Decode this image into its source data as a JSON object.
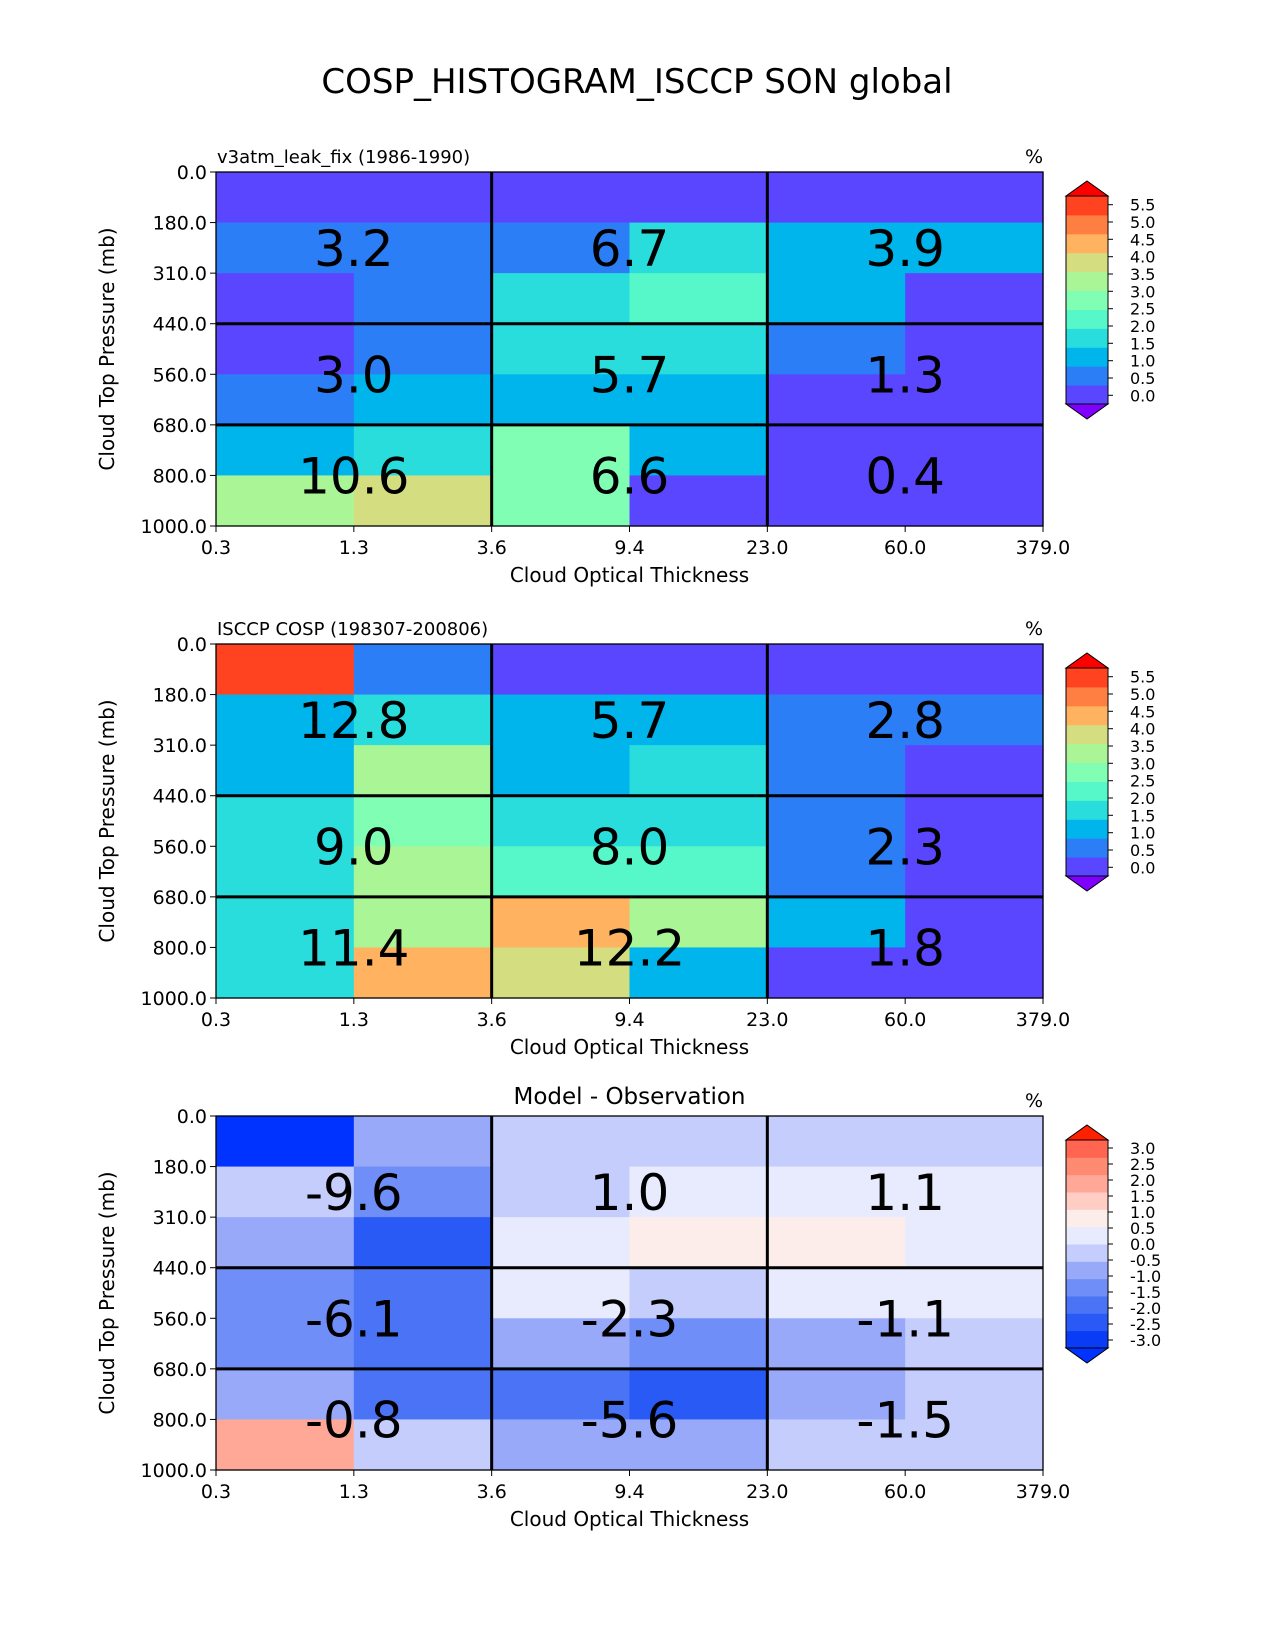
{
  "figure": {
    "title": "COSP_HISTOGRAM_ISCCP SON global"
  },
  "chart_data": [
    {
      "type": "heatmap",
      "title_left": "v3atm_leak_fix (1986-1990)",
      "title_center": "",
      "units": "%",
      "xlabel": "Cloud Optical Thickness",
      "ylabel": "Cloud Top Pressure (mb)",
      "x_ticks": [
        "0.3",
        "1.3",
        "3.6",
        "9.4",
        "23.0",
        "60.0",
        "379.0"
      ],
      "y_ticks": [
        "0.0",
        "180.0",
        "310.0",
        "440.0",
        "560.0",
        "680.0",
        "800.0",
        "1000.0"
      ],
      "cells": [
        [
          0.2,
          0.2,
          0.2,
          0.2,
          0.2,
          0.2
        ],
        [
          0.7,
          0.7,
          0.7,
          1.8,
          1.2,
          1.2
        ],
        [
          0.2,
          0.7,
          1.8,
          2.3,
          1.2,
          0.2
        ],
        [
          0.2,
          0.7,
          1.8,
          1.8,
          0.7,
          0.2
        ],
        [
          0.7,
          1.2,
          1.2,
          1.2,
          0.2,
          0.2
        ],
        [
          1.2,
          1.8,
          2.8,
          1.2,
          0.2,
          0.2
        ],
        [
          3.3,
          3.8,
          2.8,
          0.2,
          0.2,
          0.2
        ]
      ],
      "block_labels": [
        [
          "3.2",
          "6.7",
          "3.9"
        ],
        [
          "3.0",
          "5.7",
          "1.3"
        ],
        [
          "10.6",
          "6.6",
          "0.4"
        ]
      ],
      "colorbar": {
        "palette": "rainbow",
        "tick_labels": [
          "5.5",
          "5.0",
          "4.5",
          "4.0",
          "3.5",
          "3.0",
          "2.5",
          "2.0",
          "1.5",
          "1.0",
          "0.5",
          "0.0"
        ],
        "levels": [
          0.0,
          0.5,
          1.0,
          1.5,
          2.0,
          2.5,
          3.0,
          3.5,
          4.0,
          4.5,
          5.0,
          5.5
        ]
      }
    },
    {
      "type": "heatmap",
      "title_left": "ISCCP COSP (198307-200806)",
      "title_center": "",
      "units": "%",
      "xlabel": "Cloud Optical Thickness",
      "ylabel": "Cloud Top Pressure (mb)",
      "x_ticks": [
        "0.3",
        "1.3",
        "3.6",
        "9.4",
        "23.0",
        "60.0",
        "379.0"
      ],
      "y_ticks": [
        "0.0",
        "180.0",
        "310.0",
        "440.0",
        "560.0",
        "680.0",
        "800.0",
        "1000.0"
      ],
      "cells": [
        [
          5.2,
          0.7,
          0.2,
          0.2,
          0.2,
          0.2
        ],
        [
          1.2,
          1.8,
          1.2,
          1.2,
          0.7,
          0.7
        ],
        [
          1.2,
          3.3,
          1.2,
          1.8,
          0.7,
          0.2
        ],
        [
          1.8,
          2.8,
          1.8,
          1.8,
          0.7,
          0.2
        ],
        [
          1.8,
          3.3,
          2.3,
          2.3,
          0.7,
          0.2
        ],
        [
          1.8,
          3.3,
          4.2,
          3.3,
          1.2,
          0.2
        ],
        [
          1.8,
          4.2,
          3.8,
          1.2,
          0.2,
          0.2
        ]
      ],
      "block_labels": [
        [
          "12.8",
          "5.7",
          "2.8"
        ],
        [
          "9.0",
          "8.0",
          "2.3"
        ],
        [
          "11.4",
          "12.2",
          "1.8"
        ]
      ],
      "colorbar": {
        "palette": "rainbow",
        "tick_labels": [
          "5.5",
          "5.0",
          "4.5",
          "4.0",
          "3.5",
          "3.0",
          "2.5",
          "2.0",
          "1.5",
          "1.0",
          "0.5",
          "0.0"
        ],
        "levels": [
          0.0,
          0.5,
          1.0,
          1.5,
          2.0,
          2.5,
          3.0,
          3.5,
          4.0,
          4.5,
          5.0,
          5.5
        ]
      }
    },
    {
      "type": "heatmap",
      "title_left": "",
      "title_center": "Model - Observation",
      "units": "%",
      "xlabel": "Cloud Optical Thickness",
      "ylabel": "Cloud Top Pressure (mb)",
      "x_ticks": [
        "0.3",
        "1.3",
        "3.6",
        "9.4",
        "23.0",
        "60.0",
        "379.0"
      ],
      "y_ticks": [
        "0.0",
        "180.0",
        "310.0",
        "440.0",
        "560.0",
        "680.0",
        "800.0",
        "1000.0"
      ],
      "cells": [
        [
          -3.2,
          -0.7,
          -0.2,
          -0.2,
          -0.2,
          -0.2
        ],
        [
          -0.2,
          -1.2,
          -0.2,
          0.2,
          0.2,
          0.2
        ],
        [
          -0.7,
          -2.2,
          0.2,
          0.7,
          0.7,
          0.2
        ],
        [
          -1.2,
          -1.7,
          0.2,
          -0.2,
          0.2,
          0.2
        ],
        [
          -1.2,
          -1.7,
          -0.7,
          -1.2,
          -0.7,
          -0.2
        ],
        [
          -0.7,
          -1.7,
          -1.7,
          -2.2,
          -0.7,
          -0.2
        ],
        [
          1.7,
          -0.2,
          -0.7,
          -0.7,
          -0.2,
          -0.2
        ]
      ],
      "block_labels": [
        [
          "-9.6",
          "1.0",
          "1.1"
        ],
        [
          "-6.1",
          "-2.3",
          "-1.1"
        ],
        [
          "-0.8",
          "-5.6",
          "-1.5"
        ]
      ],
      "colorbar": {
        "palette": "diverging",
        "tick_labels": [
          "3.0",
          "2.5",
          "2.0",
          "1.5",
          "1.0",
          "0.5",
          "0.0",
          "-0.5",
          "-1.0",
          "-1.5",
          "-2.0",
          "-2.5",
          "-3.0"
        ],
        "levels": [
          -3.0,
          -2.5,
          -2.0,
          -1.5,
          -1.0,
          -0.5,
          0.0,
          0.5,
          1.0,
          1.5,
          2.0,
          2.5,
          3.0
        ]
      }
    }
  ],
  "palettes": {
    "rainbow": {
      "under": "#8000ff",
      "over": "#ff0000",
      "bins": [
        "#5a46ff",
        "#2c7ef7",
        "#00b4ec",
        "#2adddd",
        "#56f7c9",
        "#80ffb4",
        "#aaf696",
        "#d4dd80",
        "#ffb360",
        "#ff7e41",
        "#ff4321"
      ]
    },
    "diverging": {
      "under": "#0033ff",
      "over": "#ff2000",
      "bins": [
        "#0a3cf5",
        "#2a5af5",
        "#4a73f5",
        "#6f8ef7",
        "#97a9f8",
        "#c4cdfb",
        "#e8ebfd",
        "#fdedea",
        "#ffcdc4",
        "#ffa897",
        "#ff8a72",
        "#ff6550"
      ]
    }
  }
}
